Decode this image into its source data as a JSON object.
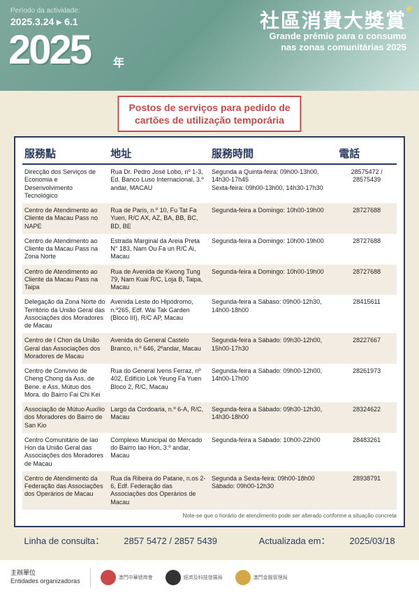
{
  "header": {
    "period_label": "Período da actividade:",
    "period_dates": "2025.3.24 ▸ 6.1",
    "big_year": "2025",
    "year_suffix": "年",
    "title_cn": "社區消費大獎賞",
    "title_pt1": "Grande prémio para o consumo",
    "title_pt2": "nas zonas comunitárias 2025"
  },
  "subtitle": {
    "line1": "Postos de serviços para pedido de",
    "line2": "cartões de utilização temporária"
  },
  "table": {
    "headers": [
      "服務點",
      "地址",
      "服務時間",
      "電話"
    ],
    "rows": [
      {
        "c1": "Direcção dos Serviços de Economia e Desenvolvimento Tecnológico",
        "c2": "Rua Dr. Pedro José Lobo, nº 1-3, Ed. Banco Luso Internacional, 3.º andar, MACAU",
        "c3": "Segunda a Quinta-feira: 09h00-13h00, 14h30-17h45\nSexta-feira: 09h00-13h00, 14h30-17h30",
        "c4": "28575472 / 28575439"
      },
      {
        "c1": "Centro de Atendimento ao Cliente da Macau Pass no NAPE",
        "c2": "Rua de Paris, n.º 10, Fu Tat Fa Yuen, R/C AX, AZ, BA, BB, BC, BD, BE",
        "c3": "Segunda-feira a Domingo: 10h00-19h00",
        "c4": "28727688"
      },
      {
        "c1": "Centro de Atendimento ao Cliente da Macau Pass na Zona Norte",
        "c2": "Estrada Marginal da Areia Preta N° 183, Nam Ou Fa un R/C Ai, Macau",
        "c3": "Segunda-feira a Domingo: 10h00-19h00",
        "c4": "28727688"
      },
      {
        "c1": "Centro de Atendimento ao Cliente da Macau Pass na Taipa",
        "c2": "Rua de Avenida de Kwong Tung 79, Nam Kuai R/C, Loja B, Taipa, Macau",
        "c3": "Segunda-feira a Domingo: 10h00-19h00",
        "c4": "28727688"
      },
      {
        "c1": "Delegação da Zona Norte do Território da União Geral das Associações dos Moradores de Macau",
        "c2": "Avenida Leste do Hipódromo, n.º265, Edf. Wai Tak Garden (Bloco III), R/C AP, Macau",
        "c3": "Segunda-feira a Sábaso: 09h00-12h30, 14h00-18h00",
        "c4": "28415611"
      },
      {
        "c1": "Centro de I Chon da União Geral das Associações dos Moradores de Macau",
        "c2": "Avenida do General Castelo Branco, n.º 646, 2ºandar, Macau",
        "c3": "Segunda-feira a Sábado: 09h30-12h00, 15h00-17h30",
        "c4": "28227667"
      },
      {
        "c1": "Centro de Convívio de Cheng Chong da Ass. de Bene. e Ass. Mútuo dos Mora. do Bairro Fai Chi Kei",
        "c2": "Rua do General Ivens Ferraz, nº 402, Edifício Lok Yeung Fa Yuen Bloco 2, R/C, Macau",
        "c3": "Segunda-feira a Sábado: 09h00-12h00, 14h00-17h00",
        "c4": "28261973"
      },
      {
        "c1": "Associação de Mútuo Auxílio dos Moradores do Bairro de San Kio",
        "c2": "Largo da Cordoaria, n.º 6-A, R/C, Macau",
        "c3": "Segunda-feira a Sábado: 09h30-12h30, 14h30-18h00",
        "c4": "28324622"
      },
      {
        "c1": "Centro Comunitário de Iao Hon da União Geral das Associações dos Moradores de Macau",
        "c2": "Complexo Municipal do Mercado do Bairro Iao Hon, 3.º andar, Macau",
        "c3": "Segunda-feira a Sábado: 10h00-22h00",
        "c4": "28483261"
      },
      {
        "c1": "Centro de Atendimento da Federação das Associações dos Operários de Macau",
        "c2": "Rua da Ribeira do Patane, n.os 2-6, Edf. Federação das Associações dos Operários de Macau",
        "c3": "Segunda a Sexta-feira: 09h00-18h00\nSábado: 09h00-12h30",
        "c4": "28938791"
      }
    ],
    "note": "Note-se que o horário de atendimento pode ser alterado conforme a situação concreta"
  },
  "bottom": {
    "hotline_label": "Linha de consulta：",
    "hotline": "2857 5472 / 2857 5439",
    "updated_label": "Actualizada em：",
    "updated": "2025/03/18"
  },
  "footer": {
    "org_label_cn": "主辦單位",
    "org_label_pt": "Entidades organizadoras",
    "logos": [
      {
        "color": "#c94848",
        "text": "澳門中華總商會"
      },
      {
        "color": "#333",
        "text": "經濟及科技發展局"
      },
      {
        "color": "#d4a847",
        "text": "澳門金融管理局"
      }
    ]
  },
  "colors": {
    "header_grad_start": "#7fa89c",
    "header_grad_end": "#cce3dc",
    "accent_red": "#c94848",
    "accent_navy": "#2a3a5e",
    "bg": "#f0ebd8",
    "row_odd": "#f3ece3"
  }
}
